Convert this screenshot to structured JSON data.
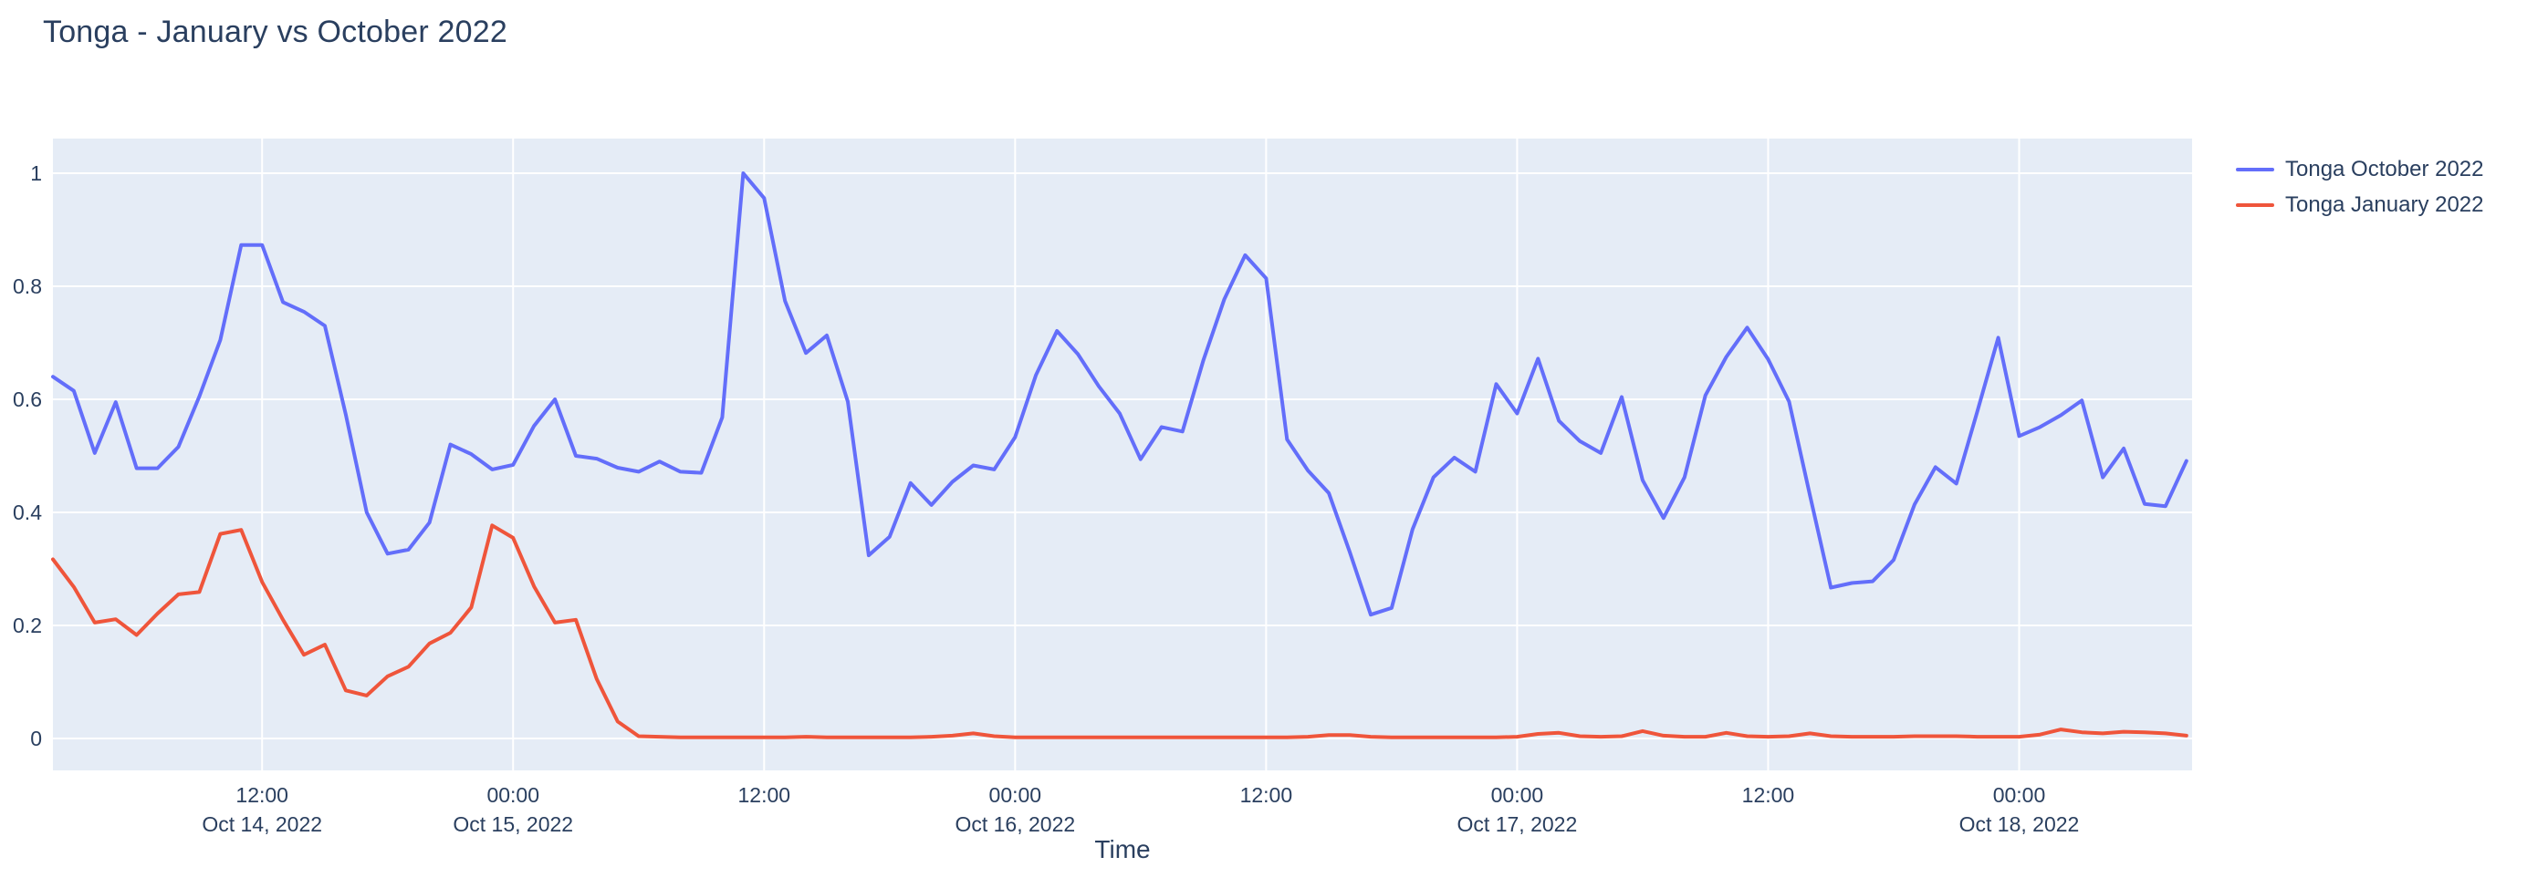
{
  "page": {
    "title": "Tonga - January vs October 2022"
  },
  "colors": {
    "background": "#ffffff",
    "plot_background": "#E5ECF6",
    "grid": "#ffffff",
    "text": "#2A3F5F",
    "october_line": "#636EFA",
    "january_line": "#EF553B"
  },
  "chart_data": {
    "type": "line",
    "title": "Tonga - January vs October 2022",
    "xlabel": "Time",
    "ylabel": "",
    "grid": true,
    "legend_position": "right",
    "plot_background": "#E5ECF6",
    "ylim": [
      0,
      1
    ],
    "x_range_note": "hourly points from Oct 14, 2022 02:00 to Oct 18, 2022 08:00",
    "y_ticks": [
      {
        "v": 0,
        "label": "0"
      },
      {
        "v": 0.2,
        "label": "0.2"
      },
      {
        "v": 0.4,
        "label": "0.4"
      },
      {
        "v": 0.6,
        "label": "0.6"
      },
      {
        "v": 0.8,
        "label": "0.8"
      },
      {
        "v": 1,
        "label": "1"
      }
    ],
    "x_ticks": [
      {
        "i": 10,
        "time": "12:00",
        "date": "Oct 14, 2022"
      },
      {
        "i": 22,
        "time": "00:00",
        "date": "Oct 15, 2022"
      },
      {
        "i": 34,
        "time": "12:00",
        "date": ""
      },
      {
        "i": 46,
        "time": "00:00",
        "date": "Oct 16, 2022"
      },
      {
        "i": 58,
        "time": "12:00",
        "date": ""
      },
      {
        "i": 70,
        "time": "00:00",
        "date": "Oct 17, 2022"
      },
      {
        "i": 82,
        "time": "12:00",
        "date": ""
      },
      {
        "i": 94,
        "time": "00:00",
        "date": "Oct 18, 2022"
      }
    ],
    "series": [
      {
        "name": "Tonga October 2022",
        "color": "#636EFA",
        "values": [
          0.64,
          0.615,
          0.505,
          0.595,
          0.478,
          0.478,
          0.516,
          0.605,
          0.705,
          0.873,
          0.873,
          0.772,
          0.755,
          0.73,
          0.573,
          0.4,
          0.327,
          0.334,
          0.382,
          0.52,
          0.503,
          0.476,
          0.484,
          0.553,
          0.6,
          0.5,
          0.495,
          0.479,
          0.472,
          0.49,
          0.472,
          0.47,
          0.568,
          1.0,
          0.956,
          0.774,
          0.682,
          0.713,
          0.596,
          0.324,
          0.357,
          0.452,
          0.413,
          0.454,
          0.483,
          0.476,
          0.533,
          0.643,
          0.721,
          0.68,
          0.623,
          0.575,
          0.494,
          0.551,
          0.543,
          0.669,
          0.777,
          0.855,
          0.814,
          0.529,
          0.474,
          0.434,
          0.33,
          0.219,
          0.231,
          0.37,
          0.462,
          0.497,
          0.472,
          0.627,
          0.575,
          0.672,
          0.562,
          0.526,
          0.505,
          0.604,
          0.457,
          0.39,
          0.462,
          0.607,
          0.675,
          0.727,
          0.671,
          0.596,
          0.43,
          0.267,
          0.275,
          0.278,
          0.316,
          0.414,
          0.48,
          0.451,
          0.578,
          0.709,
          0.535,
          0.551,
          0.572,
          0.598,
          0.462,
          0.513,
          0.415,
          0.411,
          0.491
        ]
      },
      {
        "name": "Tonga January 2022",
        "color": "#EF553B",
        "values": [
          0.317,
          0.268,
          0.205,
          0.211,
          0.183,
          0.221,
          0.255,
          0.259,
          0.362,
          0.369,
          0.277,
          0.21,
          0.148,
          0.166,
          0.085,
          0.076,
          0.11,
          0.127,
          0.168,
          0.187,
          0.232,
          0.377,
          0.355,
          0.269,
          0.205,
          0.21,
          0.105,
          0.03,
          0.004,
          0.003,
          0.002,
          0.002,
          0.002,
          0.002,
          0.002,
          0.002,
          0.003,
          0.002,
          0.002,
          0.002,
          0.002,
          0.002,
          0.003,
          0.005,
          0.009,
          0.004,
          0.002,
          0.002,
          0.002,
          0.002,
          0.002,
          0.002,
          0.002,
          0.002,
          0.002,
          0.002,
          0.002,
          0.002,
          0.002,
          0.002,
          0.003,
          0.006,
          0.006,
          0.003,
          0.002,
          0.002,
          0.002,
          0.002,
          0.002,
          0.002,
          0.003,
          0.008,
          0.01,
          0.004,
          0.003,
          0.004,
          0.013,
          0.005,
          0.003,
          0.003,
          0.01,
          0.004,
          0.003,
          0.004,
          0.009,
          0.004,
          0.003,
          0.003,
          0.003,
          0.004,
          0.004,
          0.004,
          0.003,
          0.003,
          0.003,
          0.007,
          0.016,
          0.011,
          0.009,
          0.012,
          0.011,
          0.009,
          0.005
        ]
      }
    ]
  }
}
